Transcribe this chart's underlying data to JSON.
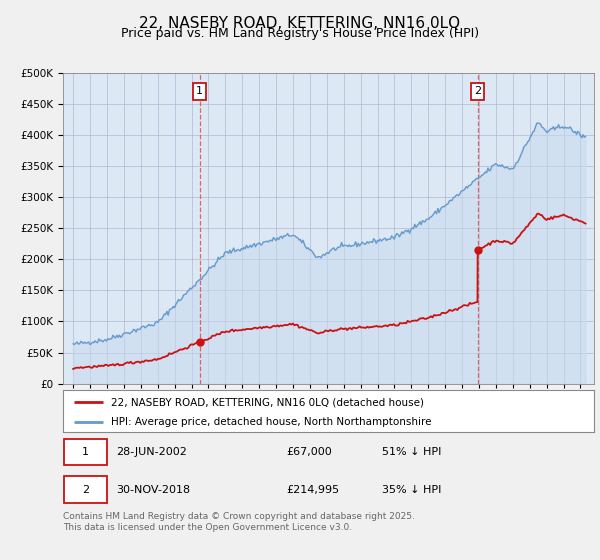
{
  "title": "22, NASEBY ROAD, KETTERING, NN16 0LQ",
  "subtitle": "Price paid vs. HM Land Registry's House Price Index (HPI)",
  "background_color": "#f0f0f0",
  "plot_bg_color": "#dce9f5",
  "ylim": [
    0,
    500000
  ],
  "yticks": [
    0,
    50000,
    100000,
    150000,
    200000,
    250000,
    300000,
    350000,
    400000,
    450000,
    500000
  ],
  "hpi_color": "#6699cc",
  "price_color": "#cc1111",
  "sale1_year": 2002.49,
  "sale1_price": 67000,
  "sale2_year": 2018.92,
  "sale2_price": 214995,
  "legend_label1": "22, NASEBY ROAD, KETTERING, NN16 0LQ (detached house)",
  "legend_label2": "HPI: Average price, detached house, North Northamptonshire",
  "footer": "Contains HM Land Registry data © Crown copyright and database right 2025.\nThis data is licensed under the Open Government Licence v3.0.",
  "title_fontsize": 11,
  "subtitle_fontsize": 9,
  "tick_fontsize": 7.5
}
